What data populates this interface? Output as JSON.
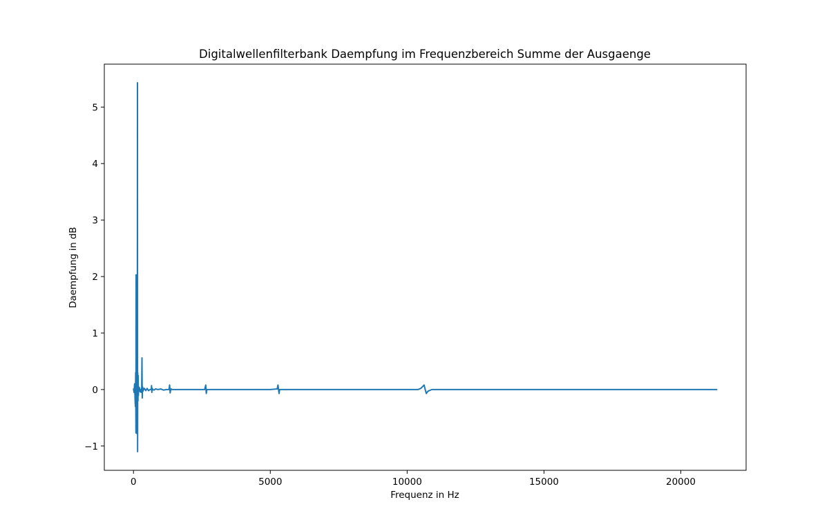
{
  "chart_data": {
    "type": "line",
    "title": "Digitalwellenfilterbank Daempfung im Frequenzbereich Summe der Ausgaenge",
    "xlabel": "Frequenz in Hz",
    "ylabel": "Daempfung in dB",
    "xlim": [
      -1066,
      22386
    ],
    "ylim": [
      -1.43,
      5.76
    ],
    "xticks": [
      0,
      5000,
      10000,
      15000,
      20000
    ],
    "xtick_labels": [
      "0",
      "5000",
      "10000",
      "15000",
      "20000"
    ],
    "yticks": [
      -1,
      0,
      1,
      2,
      3,
      4,
      5
    ],
    "ytick_labels": [
      "−1",
      "0",
      "1",
      "2",
      "3",
      "4",
      "5"
    ],
    "grid": false,
    "series_color": "#1f77b4",
    "series": [
      {
        "x": [
          0,
          20,
          40,
          60,
          70,
          80,
          90,
          95,
          100,
          105,
          110,
          115,
          120,
          125,
          130,
          135,
          140,
          145,
          150,
          155,
          160,
          165,
          170,
          180,
          190,
          200,
          220,
          240,
          260,
          280,
          300,
          310,
          320,
          330,
          340,
          350,
          360,
          380,
          400,
          450,
          500,
          550,
          600,
          650,
          660,
          670,
          680,
          690,
          700,
          750,
          800,
          900,
          1000,
          1100,
          1200,
          1300,
          1320,
          1340,
          1360,
          1380,
          1400,
          1500,
          1700,
          2000,
          2300,
          2600,
          2640,
          2660,
          2680,
          2700,
          2720,
          2760,
          3000,
          3500,
          4000,
          4500,
          5000,
          5250,
          5280,
          5300,
          5320,
          5340,
          5360,
          5400,
          6000,
          7000,
          8000,
          9000,
          10000,
          10400,
          10500,
          10560,
          10620,
          10660,
          10700,
          10760,
          10900,
          11500,
          12500,
          14000,
          16000,
          18000,
          20000,
          21333
        ],
        "y": [
          0.02,
          -0.05,
          0.1,
          -0.2,
          -0.3,
          0.3,
          -0.77,
          2.03,
          -0.6,
          0.4,
          -0.7,
          0.3,
          0.2,
          -0.78,
          0.1,
          0.3,
          -0.4,
          5.43,
          -1.1,
          0.3,
          0.0,
          -0.2,
          0.25,
          -0.1,
          0.05,
          0.0,
          0.03,
          -0.04,
          0.0,
          -0.05,
          0.03,
          0.56,
          -0.15,
          0.05,
          0.0,
          -0.03,
          0.02,
          0.0,
          0.02,
          -0.02,
          0.02,
          -0.02,
          0.0,
          0.0,
          0.07,
          -0.05,
          0.0,
          0.02,
          0.0,
          -0.01,
          0.01,
          0.0,
          0.01,
          -0.01,
          0.0,
          0.0,
          0.08,
          -0.06,
          0.0,
          0.01,
          0.0,
          0.0,
          0.0,
          0.0,
          0.0,
          0.0,
          0.08,
          -0.07,
          0.0,
          0.0,
          0.0,
          0.0,
          0.0,
          0.0,
          0.0,
          0.0,
          0.0,
          0.01,
          0.08,
          0.0,
          -0.07,
          0.0,
          0.0,
          0.0,
          0.0,
          0.0,
          0.0,
          0.0,
          0.0,
          0.0,
          0.02,
          0.05,
          0.08,
          0.0,
          -0.07,
          -0.03,
          0.0,
          0.0,
          0.0,
          0.0,
          0.0,
          0.0,
          0.0,
          0.0
        ]
      }
    ]
  }
}
